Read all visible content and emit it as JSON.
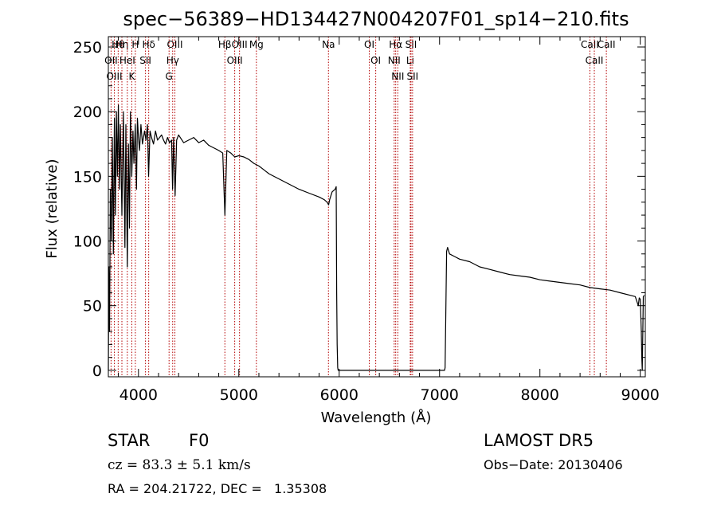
{
  "chart_data": {
    "type": "line",
    "title": "spec−56389−HD134427N004207F01_sp14−210.fits",
    "xlabel": "Wavelength (Å)",
    "ylabel": "Flux (relative)",
    "xlim": [
      3700,
      9050
    ],
    "ylim": [
      -5,
      258
    ],
    "xticks": [
      4000,
      5000,
      6000,
      7000,
      8000,
      9000
    ],
    "yticks": [
      0,
      50,
      100,
      150,
      200,
      250
    ],
    "grid": false,
    "series": [
      {
        "x": [
          3700,
          3705,
          3712,
          3720,
          3730,
          3740,
          3750,
          3760,
          3770,
          3780,
          3790,
          3800,
          3810,
          3820,
          3835,
          3850,
          3865,
          3875,
          3889,
          3900,
          3910,
          3920,
          3933,
          3945,
          3955,
          3968,
          3980,
          3990,
          4000,
          4010,
          4025,
          4040,
          4060,
          4075,
          4090,
          4101,
          4115,
          4130,
          4150,
          4170,
          4190,
          4210,
          4230,
          4250,
          4270,
          4290,
          4310,
          4330,
          4340,
          4350,
          4365,
          4380,
          4400,
          4450,
          4500,
          4550,
          4600,
          4650,
          4700,
          4750,
          4800,
          4840,
          4861,
          4880,
          4920,
          4960,
          5000,
          5050,
          5100,
          5150,
          5200,
          5250,
          5300,
          5400,
          5500,
          5600,
          5700,
          5800,
          5850,
          5880,
          5895,
          5905,
          5930,
          5960,
          5970,
          5975,
          5980,
          5985,
          5990,
          7050,
          7055,
          7060,
          7070,
          7080,
          7100,
          7150,
          7200,
          7300,
          7400,
          7500,
          7600,
          7700,
          7800,
          7900,
          8000,
          8100,
          8200,
          8300,
          8400,
          8500,
          8600,
          8700,
          8800,
          8900,
          8950,
          8980,
          8990,
          9000,
          9010,
          9015,
          9020,
          9030,
          9040
        ],
        "y": [
          0,
          80,
          30,
          140,
          100,
          180,
          90,
          195,
          120,
          200,
          150,
          205,
          140,
          190,
          120,
          200,
          95,
          190,
          80,
          175,
          110,
          200,
          150,
          185,
          160,
          190,
          140,
          195,
          180,
          170,
          190,
          175,
          185,
          178,
          190,
          150,
          185,
          180,
          175,
          185,
          178,
          180,
          182,
          178,
          175,
          180,
          176,
          178,
          140,
          180,
          135,
          178,
          182,
          176,
          178,
          180,
          176,
          178,
          174,
          172,
          170,
          168,
          120,
          170,
          168,
          165,
          166,
          165,
          163,
          160,
          158,
          155,
          152,
          148,
          144,
          140,
          137,
          134,
          132,
          130,
          128,
          132,
          138,
          140,
          142,
          60,
          20,
          2,
          0,
          0,
          2,
          30,
          92,
          95,
          90,
          88,
          86,
          84,
          80,
          78,
          76,
          74,
          73,
          72,
          70,
          69,
          68,
          67,
          66,
          64,
          63,
          62,
          60,
          58,
          57,
          50,
          56,
          55,
          30,
          10,
          0,
          57,
          58
        ]
      }
    ],
    "spectral_lines": [
      {
        "name": "Hθ",
        "wl": 3798
      },
      {
        "name": "OII",
        "wl": 3727
      },
      {
        "name": "OIII",
        "wl": 3760
      },
      {
        "name": "Hη",
        "wl": 3835
      },
      {
        "name": "HeI",
        "wl": 3889
      },
      {
        "name": "K",
        "wl": 3934
      },
      {
        "name": "H",
        "wl": 3969
      },
      {
        "name": "Hδ",
        "wl": 4102
      },
      {
        "name": "SII",
        "wl": 4070
      },
      {
        "name": "OIII",
        "wl": 4363
      },
      {
        "name": "Hγ",
        "wl": 4341
      },
      {
        "name": "G",
        "wl": 4305
      },
      {
        "name": "Hβ",
        "wl": 4861
      },
      {
        "name": "OIII",
        "wl": 4959
      },
      {
        "name": "OIII",
        "wl": 5007
      },
      {
        "name": "Mg",
        "wl": 5175
      },
      {
        "name": "Na",
        "wl": 5893
      },
      {
        "name": "OI",
        "wl": 6300
      },
      {
        "name": "OI",
        "wl": 6364
      },
      {
        "name": "Hα",
        "wl": 6563
      },
      {
        "name": "NII",
        "wl": 6548
      },
      {
        "name": "NII",
        "wl": 6584
      },
      {
        "name": "SII",
        "wl": 6716
      },
      {
        "name": "Li",
        "wl": 6708
      },
      {
        "name": "SII",
        "wl": 6731
      },
      {
        "name": "CaII",
        "wl": 8498
      },
      {
        "name": "CaII",
        "wl": 8542
      },
      {
        "name": "CaII",
        "wl": 8662
      }
    ],
    "colors": {
      "spectrum": "#000000",
      "line_markers": "#b40000"
    }
  },
  "info": {
    "object_class": "STAR",
    "subclass": "F0",
    "survey": "LAMOST DR5",
    "cz": "cz = 83.3 ± 5.1 km/s",
    "obs_date": "Obs−Date: 20130406",
    "coords": "RA = 204.21722, DEC =   1.35308"
  }
}
